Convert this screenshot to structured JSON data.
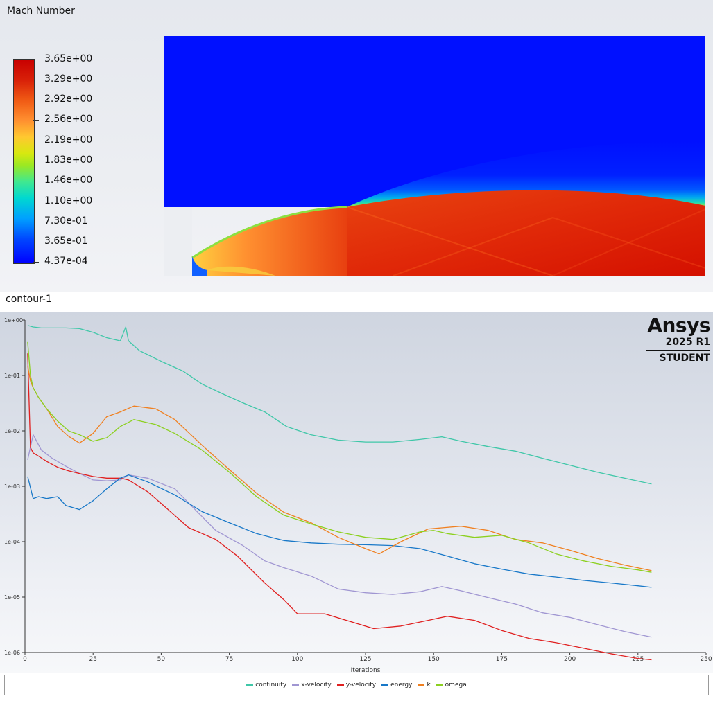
{
  "contour_panel": {
    "title": "Mach Number",
    "colorbar_labels": [
      "3.65e+00",
      "3.29e+00",
      "2.92e+00",
      "2.56e+00",
      "2.19e+00",
      "1.83e+00",
      "1.46e+00",
      "1.10e+00",
      "7.30e-01",
      "3.65e-01",
      "4.37e-04"
    ],
    "colormap": [
      "#0000ff",
      "#00a0ff",
      "#40e890",
      "#d8e810",
      "#ff9030",
      "#c80000"
    ]
  },
  "caption": "contour-1",
  "logo": {
    "brand": "Ansys",
    "version": "2025 R1",
    "edition": "STUDENT"
  },
  "chart_data": {
    "type": "line",
    "title": "",
    "xlabel": "Iterations",
    "ylabel": "",
    "xlim": [
      0,
      250
    ],
    "ylim": [
      1e-06,
      1
    ],
    "yscale": "log",
    "x_ticks": [
      0,
      25,
      50,
      75,
      100,
      125,
      150,
      175,
      200,
      225,
      250
    ],
    "y_ticks": [
      "1e+00",
      "1e-01",
      "1e-02",
      "1e-03",
      "1e-04",
      "1e-05",
      "1e-06"
    ],
    "grid": false,
    "legend_position": "bottom",
    "series": [
      {
        "name": "continuity",
        "color": "#3fc7a8",
        "x": [
          1,
          3,
          6,
          10,
          15,
          20,
          25,
          30,
          35,
          37,
          38,
          42,
          50,
          58,
          65,
          72,
          80,
          88,
          96,
          105,
          115,
          125,
          135,
          145,
          153,
          160,
          170,
          180,
          190,
          200,
          210,
          220,
          230
        ],
        "y": [
          0.8,
          0.75,
          0.72,
          0.72,
          0.72,
          0.7,
          0.6,
          0.48,
          0.42,
          0.75,
          0.42,
          0.28,
          0.18,
          0.12,
          0.07,
          0.048,
          0.032,
          0.022,
          0.012,
          0.0085,
          0.0068,
          0.0063,
          0.0063,
          0.007,
          0.0078,
          0.0065,
          0.0052,
          0.0043,
          0.0032,
          0.0024,
          0.0018,
          0.0014,
          0.0011
        ]
      },
      {
        "name": "x-velocity",
        "color": "#a096d2",
        "x": [
          1,
          3,
          6,
          10,
          15,
          20,
          25,
          30,
          35,
          38,
          45,
          55,
          62,
          70,
          80,
          88,
          95,
          105,
          115,
          125,
          135,
          145,
          153,
          160,
          170,
          180,
          190,
          200,
          210,
          220,
          230
        ],
        "y": [
          0.003,
          0.0085,
          0.0045,
          0.0032,
          0.0023,
          0.0017,
          0.0013,
          0.00125,
          0.0013,
          0.0016,
          0.0014,
          0.0009,
          0.0004,
          0.00016,
          8.5e-05,
          4.5e-05,
          3.4e-05,
          2.4e-05,
          1.4e-05,
          1.2e-05,
          1.12e-05,
          1.25e-05,
          1.55e-05,
          1.3e-05,
          9.8e-06,
          7.5e-06,
          5.2e-06,
          4.3e-06,
          3.2e-06,
          2.4e-06,
          1.9e-06
        ]
      },
      {
        "name": "y-velocity",
        "color": "#e02020",
        "x": [
          1,
          2,
          3,
          5,
          8,
          12,
          16,
          20,
          25,
          30,
          35,
          38,
          45,
          52,
          60,
          70,
          78,
          88,
          95,
          100,
          110,
          118,
          128,
          138,
          148,
          155,
          165,
          175,
          185,
          195,
          205,
          215,
          225,
          230
        ],
        "y": [
          0.25,
          0.005,
          0.004,
          0.0035,
          0.0028,
          0.0022,
          0.0019,
          0.0017,
          0.0015,
          0.0014,
          0.0014,
          0.0013,
          0.0008,
          0.0004,
          0.00018,
          0.00011,
          5.5e-05,
          1.8e-05,
          9e-06,
          5e-06,
          5e-06,
          3.8e-06,
          2.7e-06,
          3e-06,
          3.8e-06,
          4.5e-06,
          3.8e-06,
          2.5e-06,
          1.8e-06,
          1.5e-06,
          1.2e-06,
          9.5e-07,
          7.8e-07,
          7.4e-07
        ]
      },
      {
        "name": "energy",
        "color": "#1878c8",
        "x": [
          1,
          3,
          5,
          8,
          12,
          15,
          20,
          25,
          30,
          35,
          38,
          45,
          55,
          65,
          75,
          85,
          95,
          105,
          115,
          125,
          135,
          145,
          155,
          165,
          175,
          185,
          195,
          205,
          215,
          225,
          230
        ],
        "y": [
          0.0015,
          0.0006,
          0.00065,
          0.0006,
          0.00065,
          0.00045,
          0.00038,
          0.00055,
          0.0009,
          0.0014,
          0.0016,
          0.0012,
          0.0007,
          0.00035,
          0.00022,
          0.00014,
          0.000105,
          9.5e-05,
          9e-05,
          8.8e-05,
          8.5e-05,
          7.5e-05,
          5.5e-05,
          4e-05,
          3.2e-05,
          2.6e-05,
          2.3e-05,
          2e-05,
          1.8e-05,
          1.6e-05,
          1.5e-05
        ]
      },
      {
        "name": "k",
        "color": "#f08020",
        "x": [
          1,
          2,
          3,
          5,
          8,
          12,
          16,
          20,
          25,
          30,
          35,
          40,
          48,
          55,
          65,
          75,
          85,
          95,
          105,
          115,
          125,
          130,
          138,
          148,
          160,
          170,
          180,
          190,
          200,
          210,
          220,
          230
        ],
        "y": [
          0.15,
          0.08,
          0.06,
          0.04,
          0.025,
          0.012,
          0.008,
          0.006,
          0.009,
          0.018,
          0.022,
          0.028,
          0.025,
          0.016,
          0.0055,
          0.002,
          0.00075,
          0.00034,
          0.00022,
          0.00012,
          7.5e-05,
          6e-05,
          0.0001,
          0.00017,
          0.00019,
          0.00016,
          0.00011,
          9.5e-05,
          7e-05,
          5e-05,
          3.8e-05,
          3e-05
        ]
      },
      {
        "name": "omega",
        "color": "#8cd020",
        "x": [
          1,
          2,
          3,
          5,
          8,
          12,
          16,
          20,
          25,
          30,
          35,
          40,
          48,
          55,
          65,
          75,
          85,
          95,
          105,
          115,
          125,
          135,
          145,
          150,
          155,
          165,
          175,
          185,
          195,
          205,
          215,
          225,
          230
        ],
        "y": [
          0.4,
          0.1,
          0.06,
          0.04,
          0.025,
          0.015,
          0.01,
          0.0085,
          0.0065,
          0.0075,
          0.012,
          0.016,
          0.013,
          0.009,
          0.0045,
          0.0018,
          0.00065,
          0.0003,
          0.00021,
          0.00015,
          0.00012,
          0.00011,
          0.00015,
          0.00016,
          0.00014,
          0.00012,
          0.00013,
          9.5e-05,
          6e-05,
          4.5e-05,
          3.6e-05,
          3.1e-05,
          2.8e-05
        ]
      }
    ]
  }
}
